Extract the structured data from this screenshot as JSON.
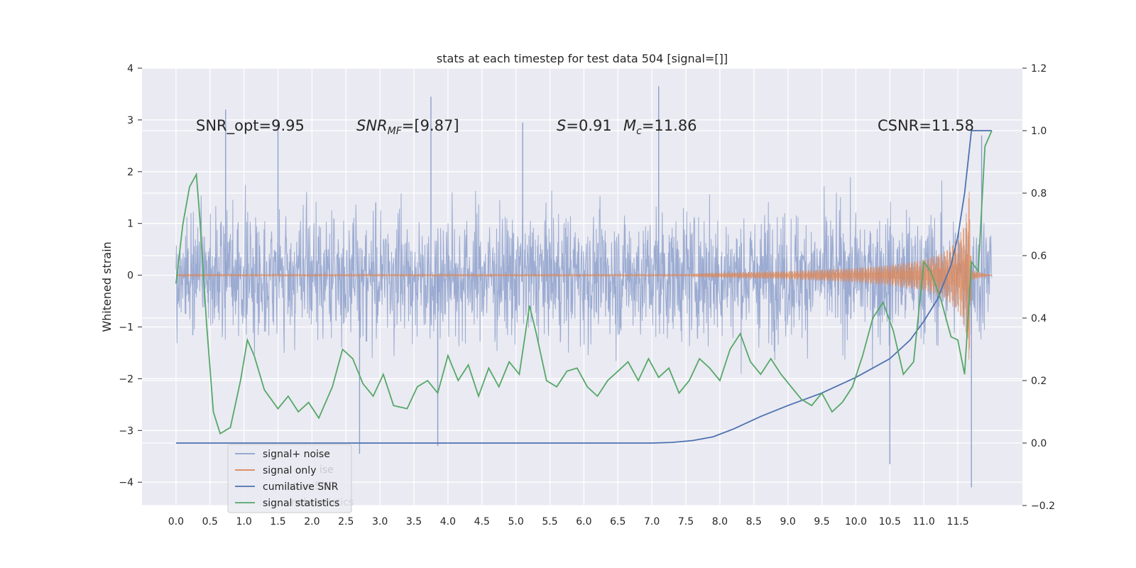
{
  "chart_data": {
    "type": "line",
    "title": "stats at each timestep for test data 504 [signal=[]]",
    "ylabel": "Whitened strain",
    "xlim": [
      -0.5,
      12.45
    ],
    "ylim": [
      -4.45,
      4.0
    ],
    "y2lim": [
      -0.2,
      1.2
    ],
    "x_ticks": [
      "0.0",
      "0.5",
      "1.0",
      "1.5",
      "2.0",
      "2.5",
      "3.0",
      "3.5",
      "4.0",
      "4.5",
      "5.0",
      "5.5",
      "6.0",
      "6.5",
      "7.0",
      "7.5",
      "8.0",
      "8.5",
      "9.0",
      "9.5",
      "10.0",
      "10.5",
      "11.0",
      "11.5"
    ],
    "y_ticks": [
      "4",
      "3",
      "2",
      "1",
      "0",
      "−1",
      "−2",
      "−3",
      "−4"
    ],
    "y2_ticks": [
      "1.2",
      "1.0",
      "0.8",
      "0.6",
      "0.4",
      "0.2",
      "0.0",
      "−0.2"
    ],
    "annotations": {
      "snr_opt": "SNR_opt=9.95",
      "snr_mf_main": "SNR",
      "snr_mf_sub": "MF",
      "snr_mf_rest": "=[9.87]",
      "s_italic": "S",
      "s_rest": "=0.91",
      "mc_main": "M",
      "mc_sub": "c",
      "mc_rest": "=11.86",
      "csnr": "CSNR=11.58"
    },
    "legend": {
      "entries": [
        "signal+ noise",
        "signal only",
        "cumilative SNR",
        "signal statistics"
      ],
      "ghost_text": [
        "ise",
        "lative SNR",
        "nal statistics"
      ]
    },
    "colors": {
      "noise": "#8da0cb",
      "signal": "#dd8452",
      "cumulative": "#4c72b0",
      "statistics": "#55a868",
      "background": "#eaeaf2",
      "grid": "#ffffff"
    },
    "series": [
      {
        "name": "signal+ noise",
        "axis": "left",
        "x_range": [
          0.0,
          12.0
        ],
        "envelope_typical": [
          -1.6,
          1.6
        ],
        "notable_peaks": [
          {
            "x": 0.73,
            "y": 3.2
          },
          {
            "x": 1.5,
            "y": 3.0
          },
          {
            "x": 3.75,
            "y": 3.45
          },
          {
            "x": 5.1,
            "y": 2.95
          },
          {
            "x": 7.1,
            "y": 3.65
          },
          {
            "x": 11.85,
            "y": 2.7
          },
          {
            "x": 2.7,
            "y": -3.45
          },
          {
            "x": 3.85,
            "y": -3.3
          },
          {
            "x": 10.5,
            "y": -3.65
          },
          {
            "x": 11.7,
            "y": -4.1
          }
        ]
      },
      {
        "name": "signal only",
        "axis": "left",
        "x_range": [
          0.0,
          12.0
        ],
        "chirp_amplitude": [
          [
            7.6,
            0.03
          ],
          [
            8.0,
            0.05
          ],
          [
            9.0,
            0.08
          ],
          [
            10.0,
            0.14
          ],
          [
            10.5,
            0.2
          ],
          [
            11.0,
            0.3
          ],
          [
            11.3,
            0.45
          ],
          [
            11.5,
            0.7
          ],
          [
            11.6,
            1.0
          ],
          [
            11.65,
            1.4
          ],
          [
            11.68,
            1.9
          ],
          [
            11.7,
            0.1
          ],
          [
            12.0,
            0.0
          ]
        ]
      },
      {
        "name": "cumilative SNR",
        "axis": "right",
        "x": [
          0.0,
          1.0,
          2.0,
          3.0,
          4.0,
          5.0,
          6.0,
          7.0,
          7.3,
          7.6,
          7.9,
          8.2,
          8.6,
          9.0,
          9.5,
          10.0,
          10.5,
          10.8,
          11.0,
          11.2,
          11.4,
          11.5,
          11.6,
          11.65,
          11.7,
          12.0
        ],
        "y": [
          0.0,
          0.0,
          0.0,
          0.0,
          0.0,
          0.0,
          0.0,
          0.0,
          0.002,
          0.008,
          0.02,
          0.045,
          0.085,
          0.12,
          0.16,
          0.21,
          0.27,
          0.33,
          0.39,
          0.46,
          0.57,
          0.66,
          0.8,
          0.9,
          1.0,
          1.0
        ]
      },
      {
        "name": "signal statistics",
        "axis": "right",
        "x": [
          0.0,
          0.1,
          0.2,
          0.3,
          0.35,
          0.45,
          0.55,
          0.65,
          0.8,
          0.95,
          1.05,
          1.15,
          1.3,
          1.5,
          1.65,
          1.8,
          1.95,
          2.1,
          2.3,
          2.45,
          2.6,
          2.75,
          2.9,
          3.05,
          3.2,
          3.4,
          3.55,
          3.7,
          3.85,
          4.0,
          4.15,
          4.3,
          4.45,
          4.6,
          4.75,
          4.9,
          5.05,
          5.2,
          5.3,
          5.45,
          5.6,
          5.75,
          5.9,
          6.05,
          6.2,
          6.35,
          6.5,
          6.65,
          6.8,
          6.95,
          7.1,
          7.25,
          7.4,
          7.55,
          7.7,
          7.85,
          8.0,
          8.15,
          8.3,
          8.45,
          8.6,
          8.75,
          8.9,
          9.05,
          9.2,
          9.35,
          9.5,
          9.65,
          9.8,
          9.95,
          10.1,
          10.25,
          10.4,
          10.55,
          10.7,
          10.85,
          11.0,
          11.1,
          11.25,
          11.4,
          11.5,
          11.6,
          11.65,
          11.7,
          11.8,
          11.9,
          12.0
        ],
        "y": [
          0.51,
          0.7,
          0.82,
          0.86,
          0.72,
          0.38,
          0.1,
          0.03,
          0.05,
          0.2,
          0.33,
          0.28,
          0.17,
          0.11,
          0.15,
          0.1,
          0.13,
          0.08,
          0.18,
          0.3,
          0.27,
          0.19,
          0.15,
          0.22,
          0.12,
          0.11,
          0.18,
          0.2,
          0.16,
          0.28,
          0.2,
          0.25,
          0.15,
          0.24,
          0.18,
          0.26,
          0.22,
          0.44,
          0.35,
          0.2,
          0.18,
          0.23,
          0.24,
          0.18,
          0.15,
          0.2,
          0.23,
          0.26,
          0.2,
          0.27,
          0.21,
          0.24,
          0.16,
          0.2,
          0.27,
          0.24,
          0.2,
          0.3,
          0.35,
          0.26,
          0.22,
          0.27,
          0.22,
          0.18,
          0.14,
          0.12,
          0.16,
          0.1,
          0.13,
          0.18,
          0.28,
          0.4,
          0.45,
          0.36,
          0.22,
          0.26,
          0.58,
          0.55,
          0.46,
          0.34,
          0.33,
          0.22,
          0.4,
          0.58,
          0.55,
          0.95,
          1.0
        ]
      }
    ]
  }
}
